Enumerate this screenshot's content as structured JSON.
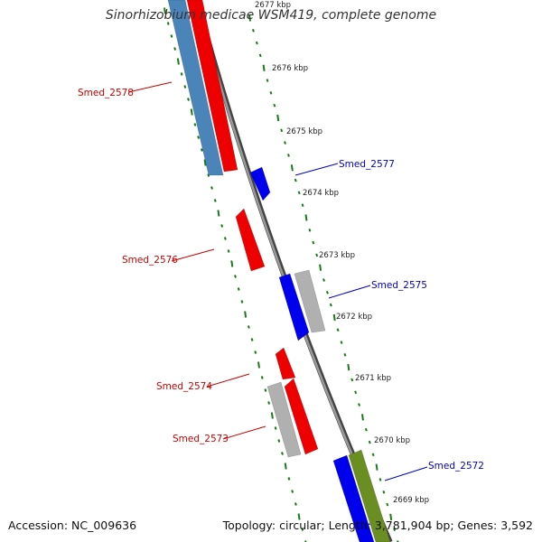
{
  "title": "Sinorhizobium medicae WSM419, complete genome",
  "footer": {
    "accession": "Accession: NC_009636",
    "summary": "Topology: circular; Length: 3,781,904 bp; Genes: 3,592"
  },
  "colors": {
    "backbone": "#888888",
    "tick_green": "#1a7a1a",
    "forward_gene": "#0000ee",
    "reverse_gene": "#ee0000",
    "pseudo_gene": "#b0b0b0",
    "steelblue_gene": "#4a84b8",
    "olive_gene": "#6b8e23",
    "forward_label": "#0000cc",
    "reverse_label": "#cc0000"
  },
  "scale": {
    "ticks": [
      {
        "label": "2677 kbp"
      },
      {
        "label": "2676 kbp"
      },
      {
        "label": "2675 kbp"
      },
      {
        "label": "2674 kbp"
      },
      {
        "label": "2673 kbp"
      },
      {
        "label": "2672 kbp"
      },
      {
        "label": "2671 kbp"
      },
      {
        "label": "2670 kbp"
      },
      {
        "label": "2669 kbp"
      }
    ]
  },
  "genes": [
    {
      "label": "Smed_2578",
      "strand": "reverse",
      "color": "steelblue"
    },
    {
      "label": "",
      "strand": "reverse",
      "color": "red"
    },
    {
      "label": "Smed_2577",
      "strand": "forward",
      "color": "blue"
    },
    {
      "label": "Smed_2576",
      "strand": "reverse",
      "color": "red"
    },
    {
      "label": "Smed_2575",
      "strand": "forward",
      "color": "blue"
    },
    {
      "label": "",
      "strand": "forward",
      "color": "gray"
    },
    {
      "label": "Smed_2574",
      "strand": "reverse",
      "color": "red"
    },
    {
      "label": "Smed_2573",
      "strand": "reverse",
      "color": "gray"
    },
    {
      "label": "",
      "strand": "reverse",
      "color": "red"
    },
    {
      "label": "Smed_2572",
      "strand": "forward",
      "color": "blue"
    },
    {
      "label": "",
      "strand": "forward",
      "color": "olive"
    }
  ]
}
